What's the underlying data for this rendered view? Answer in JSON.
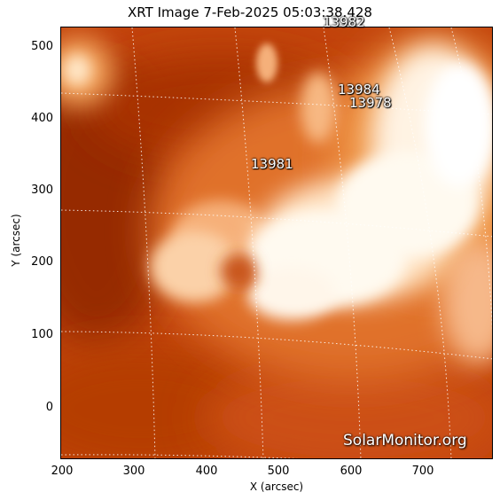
{
  "title": "XRT Image   7-Feb-2025 05:03:38.428",
  "axes": {
    "xlabel": "X (arcsec)",
    "ylabel": "Y (arcsec)",
    "xlim": [
      195,
      795
    ],
    "ylim": [
      -72,
      527
    ],
    "xticks": [
      "200",
      "300",
      "400",
      "500",
      "600",
      "700"
    ],
    "xtick_values": [
      200,
      300,
      400,
      500,
      600,
      700
    ],
    "yticks": [
      "0",
      "100",
      "200",
      "300",
      "400",
      "500"
    ],
    "ytick_values": [
      0,
      100,
      200,
      300,
      400,
      500
    ]
  },
  "regions": [
    {
      "id": "13982",
      "label": "13982",
      "x": 565,
      "y": 535
    },
    {
      "id": "13984",
      "label": "13984",
      "x": 578,
      "y": 433
    },
    {
      "id": "13978",
      "label": "13978",
      "x": 592,
      "y": 418
    },
    {
      "id": "13981",
      "label": "13981",
      "x": 460,
      "y": 331
    }
  ],
  "watermark": "SolarMonitor.org",
  "colors": {
    "background": "#c2440b",
    "bright": "#fffaf0",
    "dark": "#8a2300"
  }
}
